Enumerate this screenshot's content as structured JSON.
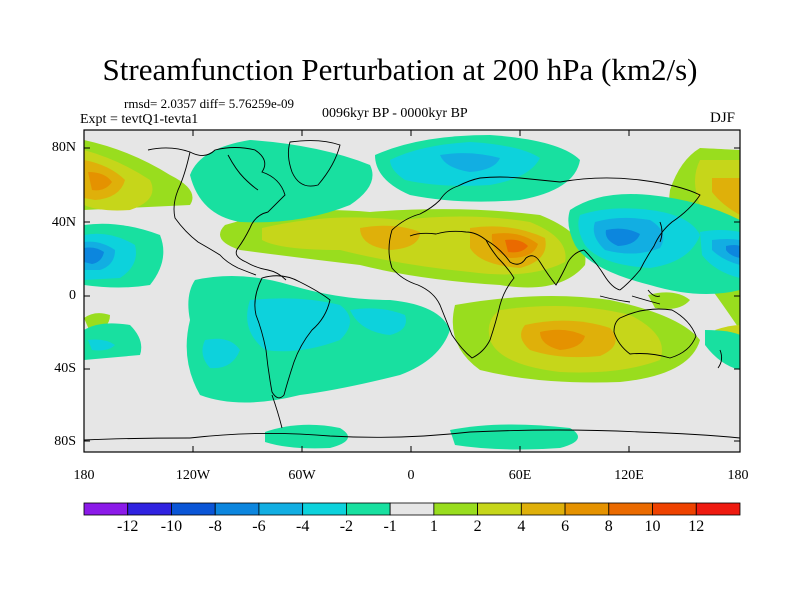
{
  "title": "Streamfunction Perturbation at 200 hPa (km2/s)",
  "stats": "rmsd= 2.0357 diff= 5.76259e-09",
  "experiment": "Expt = tevtQ1-tevta1",
  "period": "0096kyr BP - 0000kyr BP",
  "season": "DJF",
  "y_axis_labels": [
    "80N",
    "40N",
    "0",
    "40S",
    "80S"
  ],
  "x_axis_labels": [
    "180",
    "120W",
    "60W",
    "0",
    "60E",
    "120E",
    "180"
  ],
  "colorbar": {
    "labels": [
      "-12",
      "-10",
      "-8",
      "-6",
      "-4",
      "-2",
      "-1",
      "1",
      "2",
      "4",
      "6",
      "8",
      "10",
      "12"
    ],
    "colors": [
      "#8b1ae8",
      "#3022e0",
      "#0a55d6",
      "#0c86de",
      "#12aee2",
      "#0dd2dc",
      "#18e0a0",
      "#e6e6e6",
      "#99dd1e",
      "#c6d61a",
      "#dfb00a",
      "#e59200",
      "#ea6a00",
      "#ee4200",
      "#ee1a10"
    ]
  },
  "colors": {
    "background_zero": "#e6e6e6",
    "coastline": "#000000"
  }
}
